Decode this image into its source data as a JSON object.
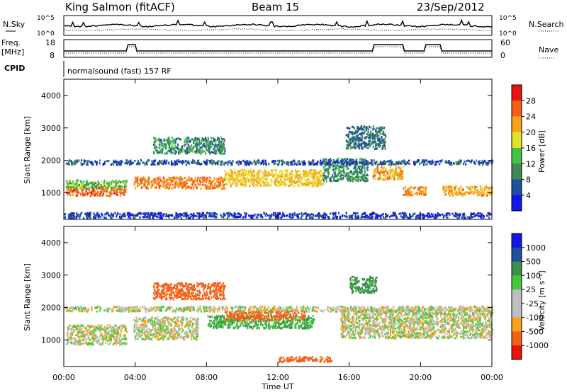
{
  "header": {
    "station": "King Salmon (fitACF)",
    "beam": "Beam 15",
    "date": "23/Sep/2012"
  },
  "top_panels": {
    "nsky_label": "N.Sky",
    "nsearch_label": "N.Search",
    "freq_label_1": "Freq.",
    "freq_label_2": "[MHz]",
    "nave_label": "Nave",
    "cpid_label": "CPID",
    "cpid_text": "normalsound (fast) 157 RF",
    "nsky_ticks": [
      "10^5",
      "10^0"
    ],
    "nsearch_ticks": [
      "10^5",
      "10^0"
    ],
    "freq_ticks": [
      "18",
      "8"
    ],
    "nave_ticks": [
      "60",
      "0"
    ]
  },
  "colorbars": {
    "power_label": "Power [dB]",
    "velocity_label": "Velocity [m s⁻¹]",
    "power_colors": [
      "#1515e8",
      "#1f4f9e",
      "#3e8a55",
      "#3fc447",
      "#e6e02a",
      "#f6a21a",
      "#f46015",
      "#e8120e"
    ],
    "velocity_colors": [
      "#e8120e",
      "#f46015",
      "#f6a21a",
      "#bfbfbf",
      "#bfbfbf",
      "#46c83e",
      "#3a8f4a",
      "#1f4f9e",
      "#1515e8"
    ]
  },
  "chart_data": [
    {
      "type": "heatmap",
      "panel": "power",
      "title": "",
      "xlabel": "Time UT",
      "ylabel": "Slant Range [km]",
      "xlim": [
        "00:00",
        "24:00"
      ],
      "ylim": [
        180,
        4500
      ],
      "x_ticks": [
        "00:00",
        "04:00",
        "08:00",
        "12:00",
        "16:00",
        "20:00",
        "00:00"
      ],
      "y_ticks": [
        1000,
        2000,
        3000,
        4000
      ],
      "colorbar": {
        "label": "Power [dB]",
        "ticks": [
          4,
          8,
          12,
          16,
          20,
          24,
          28
        ],
        "range": [
          0,
          30
        ]
      },
      "echo_regions": [
        {
          "t_start": 0.1,
          "t_end": 3.5,
          "r_center": 1050,
          "r_halfwidth": 150,
          "value_db": 26
        },
        {
          "t_start": 0.1,
          "t_end": 3.5,
          "r_center": 1250,
          "r_halfwidth": 130,
          "value_db": 14
        },
        {
          "t_start": 3.9,
          "t_end": 9.0,
          "r_center": 1300,
          "r_halfwidth": 180,
          "value_db": 24
        },
        {
          "t_start": 9.0,
          "t_end": 14.5,
          "r_center": 1450,
          "r_halfwidth": 250,
          "value_db": 20
        },
        {
          "t_start": 14.5,
          "t_end": 17.0,
          "r_center": 1700,
          "r_halfwidth": 350,
          "value_db": 10
        },
        {
          "t_start": 17.3,
          "t_end": 19.0,
          "r_center": 1600,
          "r_halfwidth": 200,
          "value_db": 22
        },
        {
          "t_start": 19.0,
          "t_end": 20.3,
          "r_center": 1050,
          "r_halfwidth": 130,
          "value_db": 24
        },
        {
          "t_start": 21.2,
          "t_end": 24.0,
          "r_center": 1050,
          "r_halfwidth": 150,
          "value_db": 22
        },
        {
          "t_start": 0.0,
          "t_end": 24.0,
          "r_center": 1930,
          "r_halfwidth": 70,
          "value_db": 6
        },
        {
          "t_start": 5.0,
          "t_end": 9.0,
          "r_center": 2450,
          "r_halfwidth": 250,
          "value_db": 10
        },
        {
          "t_start": 15.8,
          "t_end": 18.0,
          "r_center": 2700,
          "r_halfwidth": 350,
          "value_db": 8
        },
        {
          "t_start": 0.0,
          "t_end": 24.0,
          "r_center": 300,
          "r_halfwidth": 80,
          "value_db": 4
        }
      ]
    },
    {
      "type": "heatmap",
      "panel": "velocity",
      "title": "",
      "xlabel": "Time UT",
      "ylabel": "Slant Range [km]",
      "xlim": [
        "00:00",
        "24:00"
      ],
      "ylim": [
        180,
        4500
      ],
      "x_ticks": [
        "00:00",
        "04:00",
        "08:00",
        "12:00",
        "16:00",
        "20:00",
        "00:00"
      ],
      "y_ticks": [
        1000,
        2000,
        3000,
        4000
      ],
      "colorbar": {
        "label": "Velocity [m s⁻¹]",
        "ticks": [
          1000,
          500,
          100,
          25,
          -25,
          -100,
          -500,
          -1000
        ]
      },
      "echo_regions": [
        {
          "t_start": 0.1,
          "t_end": 3.5,
          "r_center": 1150,
          "r_halfwidth": 300,
          "value_ms": 0
        },
        {
          "t_start": 3.9,
          "t_end": 7.5,
          "r_center": 1350,
          "r_halfwidth": 350,
          "value_ms": 0
        },
        {
          "t_start": 8.0,
          "t_end": 14.0,
          "r_center": 1550,
          "r_halfwidth": 200,
          "value_ms": 100
        },
        {
          "t_start": 9.0,
          "t_end": 13.5,
          "r_center": 1750,
          "r_halfwidth": 150,
          "value_ms": -150
        },
        {
          "t_start": 5.0,
          "t_end": 9.0,
          "r_center": 2500,
          "r_halfwidth": 250,
          "value_ms": -300
        },
        {
          "t_start": 15.5,
          "t_end": 24.0,
          "r_center": 1500,
          "r_halfwidth": 450,
          "value_ms": 0
        },
        {
          "t_start": 16.0,
          "t_end": 17.5,
          "r_center": 2700,
          "r_halfwidth": 250,
          "value_ms": 150
        },
        {
          "t_start": 0.0,
          "t_end": 24.0,
          "r_center": 1950,
          "r_halfwidth": 80,
          "value_ms": 0
        },
        {
          "t_start": 12.0,
          "t_end": 15.0,
          "r_center": 400,
          "r_halfwidth": 80,
          "value_ms": -200
        }
      ]
    }
  ]
}
